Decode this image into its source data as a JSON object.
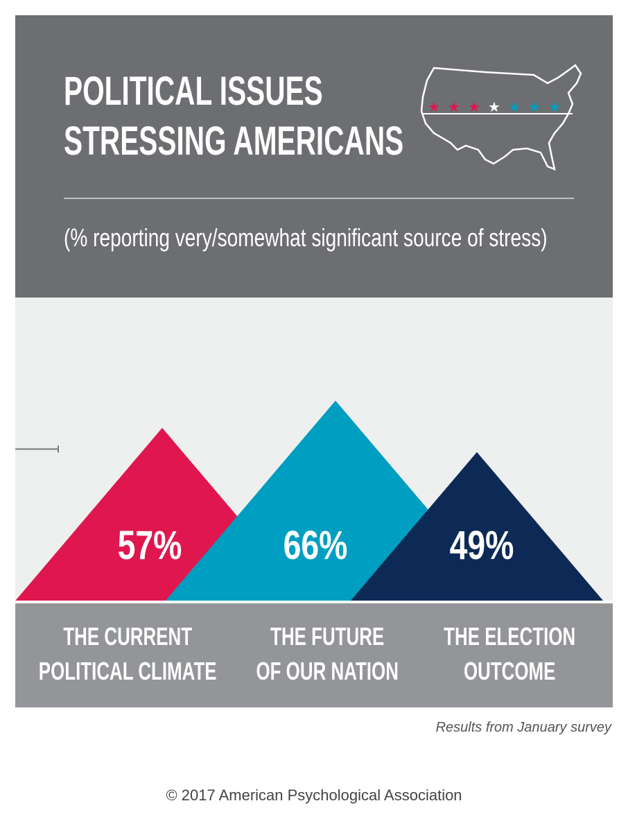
{
  "chart_data": {
    "type": "triangle",
    "title": "POLITICAL ISSUES STRESSING AMERICANS",
    "subtitle": "(% reporting very/somewhat significant source of stress)",
    "categories": [
      "THE CURRENT POLITICAL CLIMATE",
      "THE FUTURE OF OUR NATION",
      "THE ELECTION OUTCOME"
    ],
    "values": [
      57,
      66,
      49
    ],
    "value_labels": [
      "57%",
      "66%",
      "49%"
    ],
    "colors": [
      "#e0174f",
      "#009ec0",
      "#0c2a55"
    ],
    "ylim": [
      0,
      100
    ],
    "yticks": [
      50
    ],
    "note": "Results from January survey",
    "copyright": "© 2017 American Psychological Association"
  }
}
